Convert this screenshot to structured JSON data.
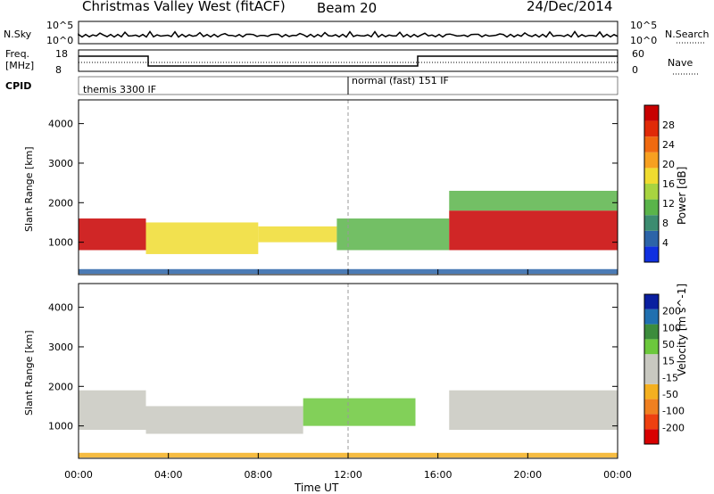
{
  "header": {
    "title": "Christmas Valley West (fitACF)",
    "beam": "Beam 20",
    "date": "24/Dec/2014"
  },
  "status_panel": {
    "nsky_label": "N.Sky",
    "nsearch_label": "N.Search",
    "freq_label_line1": "Freq.",
    "freq_label_line2": "[MHz]",
    "nave_label": "Nave",
    "cpid_label": "CPID",
    "left_ticks_top": [
      "10^5",
      "10^0"
    ],
    "right_ticks_top": [
      "10^5",
      "10^0"
    ],
    "left_ticks_freq": [
      "18",
      "8"
    ],
    "right_ticks_nave": [
      "60",
      "0"
    ],
    "cpid_1": "themis 3300 IF",
    "cpid_2": "normal (fast) 151 IF",
    "cpid_switch_time": 12
  },
  "colors": {
    "power_scale": [
      "#1030e0",
      "#2c64a8",
      "#3c8c70",
      "#5ab44a",
      "#a8d440",
      "#f0dc30",
      "#f7a020",
      "#f06a10",
      "#e02a08",
      "#c80000"
    ],
    "velocity_scale": [
      "#0a1fa0",
      "#2070b0",
      "#3c8c3c",
      "#6cc83c",
      "#c8c8c0",
      "#c8c8c0",
      "#f4b020",
      "#f08020",
      "#ee4010",
      "#d80000"
    ]
  },
  "chart_data": [
    {
      "type": "heatmap",
      "title": "Power",
      "ylabel": "Slant Range [km]",
      "xlabel": "",
      "x_range_hours": [
        0,
        24
      ],
      "ylim": [
        180,
        4600
      ],
      "yticks": [
        "1000",
        "2000",
        "3000",
        "4000"
      ],
      "colorbar": {
        "label": "Power [dB]",
        "ticks": [
          "4",
          "8",
          "12",
          "16",
          "20",
          "24",
          "28"
        ],
        "range": [
          0,
          32
        ]
      },
      "regions": [
        {
          "t0": 0.0,
          "t1": 3.0,
          "r0": 800,
          "r1": 1600,
          "value": 30
        },
        {
          "t0": 3.0,
          "t1": 8.0,
          "r0": 700,
          "r1": 1500,
          "value": 16
        },
        {
          "t0": 8.0,
          "t1": 11.5,
          "r0": 1000,
          "r1": 1400,
          "value": 18
        },
        {
          "t0": 11.5,
          "t1": 16.5,
          "r0": 800,
          "r1": 1600,
          "value": 10
        },
        {
          "t0": 16.5,
          "t1": 24.0,
          "r0": 800,
          "r1": 1800,
          "value": 30
        },
        {
          "t0": 16.5,
          "t1": 24.0,
          "r0": 1800,
          "r1": 2300,
          "value": 12
        },
        {
          "t0": 0.0,
          "t1": 24.0,
          "r0": 200,
          "r1": 320,
          "value": 6
        }
      ]
    },
    {
      "type": "heatmap",
      "title": "Velocity",
      "ylabel": "Slant Range [km]",
      "xlabel": "Time UT",
      "x_range_hours": [
        0,
        24
      ],
      "ylim": [
        180,
        4600
      ],
      "yticks": [
        "1000",
        "2000",
        "3000",
        "4000"
      ],
      "xticks": [
        "00:00",
        "04:00",
        "08:00",
        "12:00",
        "16:00",
        "20:00",
        "00:00"
      ],
      "colorbar": {
        "label": "Velocity [m s^-1]",
        "ticks": [
          "200",
          "100",
          "50",
          "15",
          "-15",
          "-50",
          "-100",
          "-200"
        ],
        "range": [
          -250,
          250
        ]
      },
      "regions": [
        {
          "t0": 0.0,
          "t1": 3.0,
          "r0": 900,
          "r1": 1900,
          "value": 0
        },
        {
          "t0": 3.0,
          "t1": 10.0,
          "r0": 800,
          "r1": 1500,
          "value": -40
        },
        {
          "t0": 10.0,
          "t1": 15.0,
          "r0": 1000,
          "r1": 1700,
          "value": 60
        },
        {
          "t0": 16.5,
          "t1": 24.0,
          "r0": 900,
          "r1": 1900,
          "value": 0
        },
        {
          "t0": 0.0,
          "t1": 24.0,
          "r0": 200,
          "r1": 320,
          "value": -50
        }
      ]
    }
  ]
}
